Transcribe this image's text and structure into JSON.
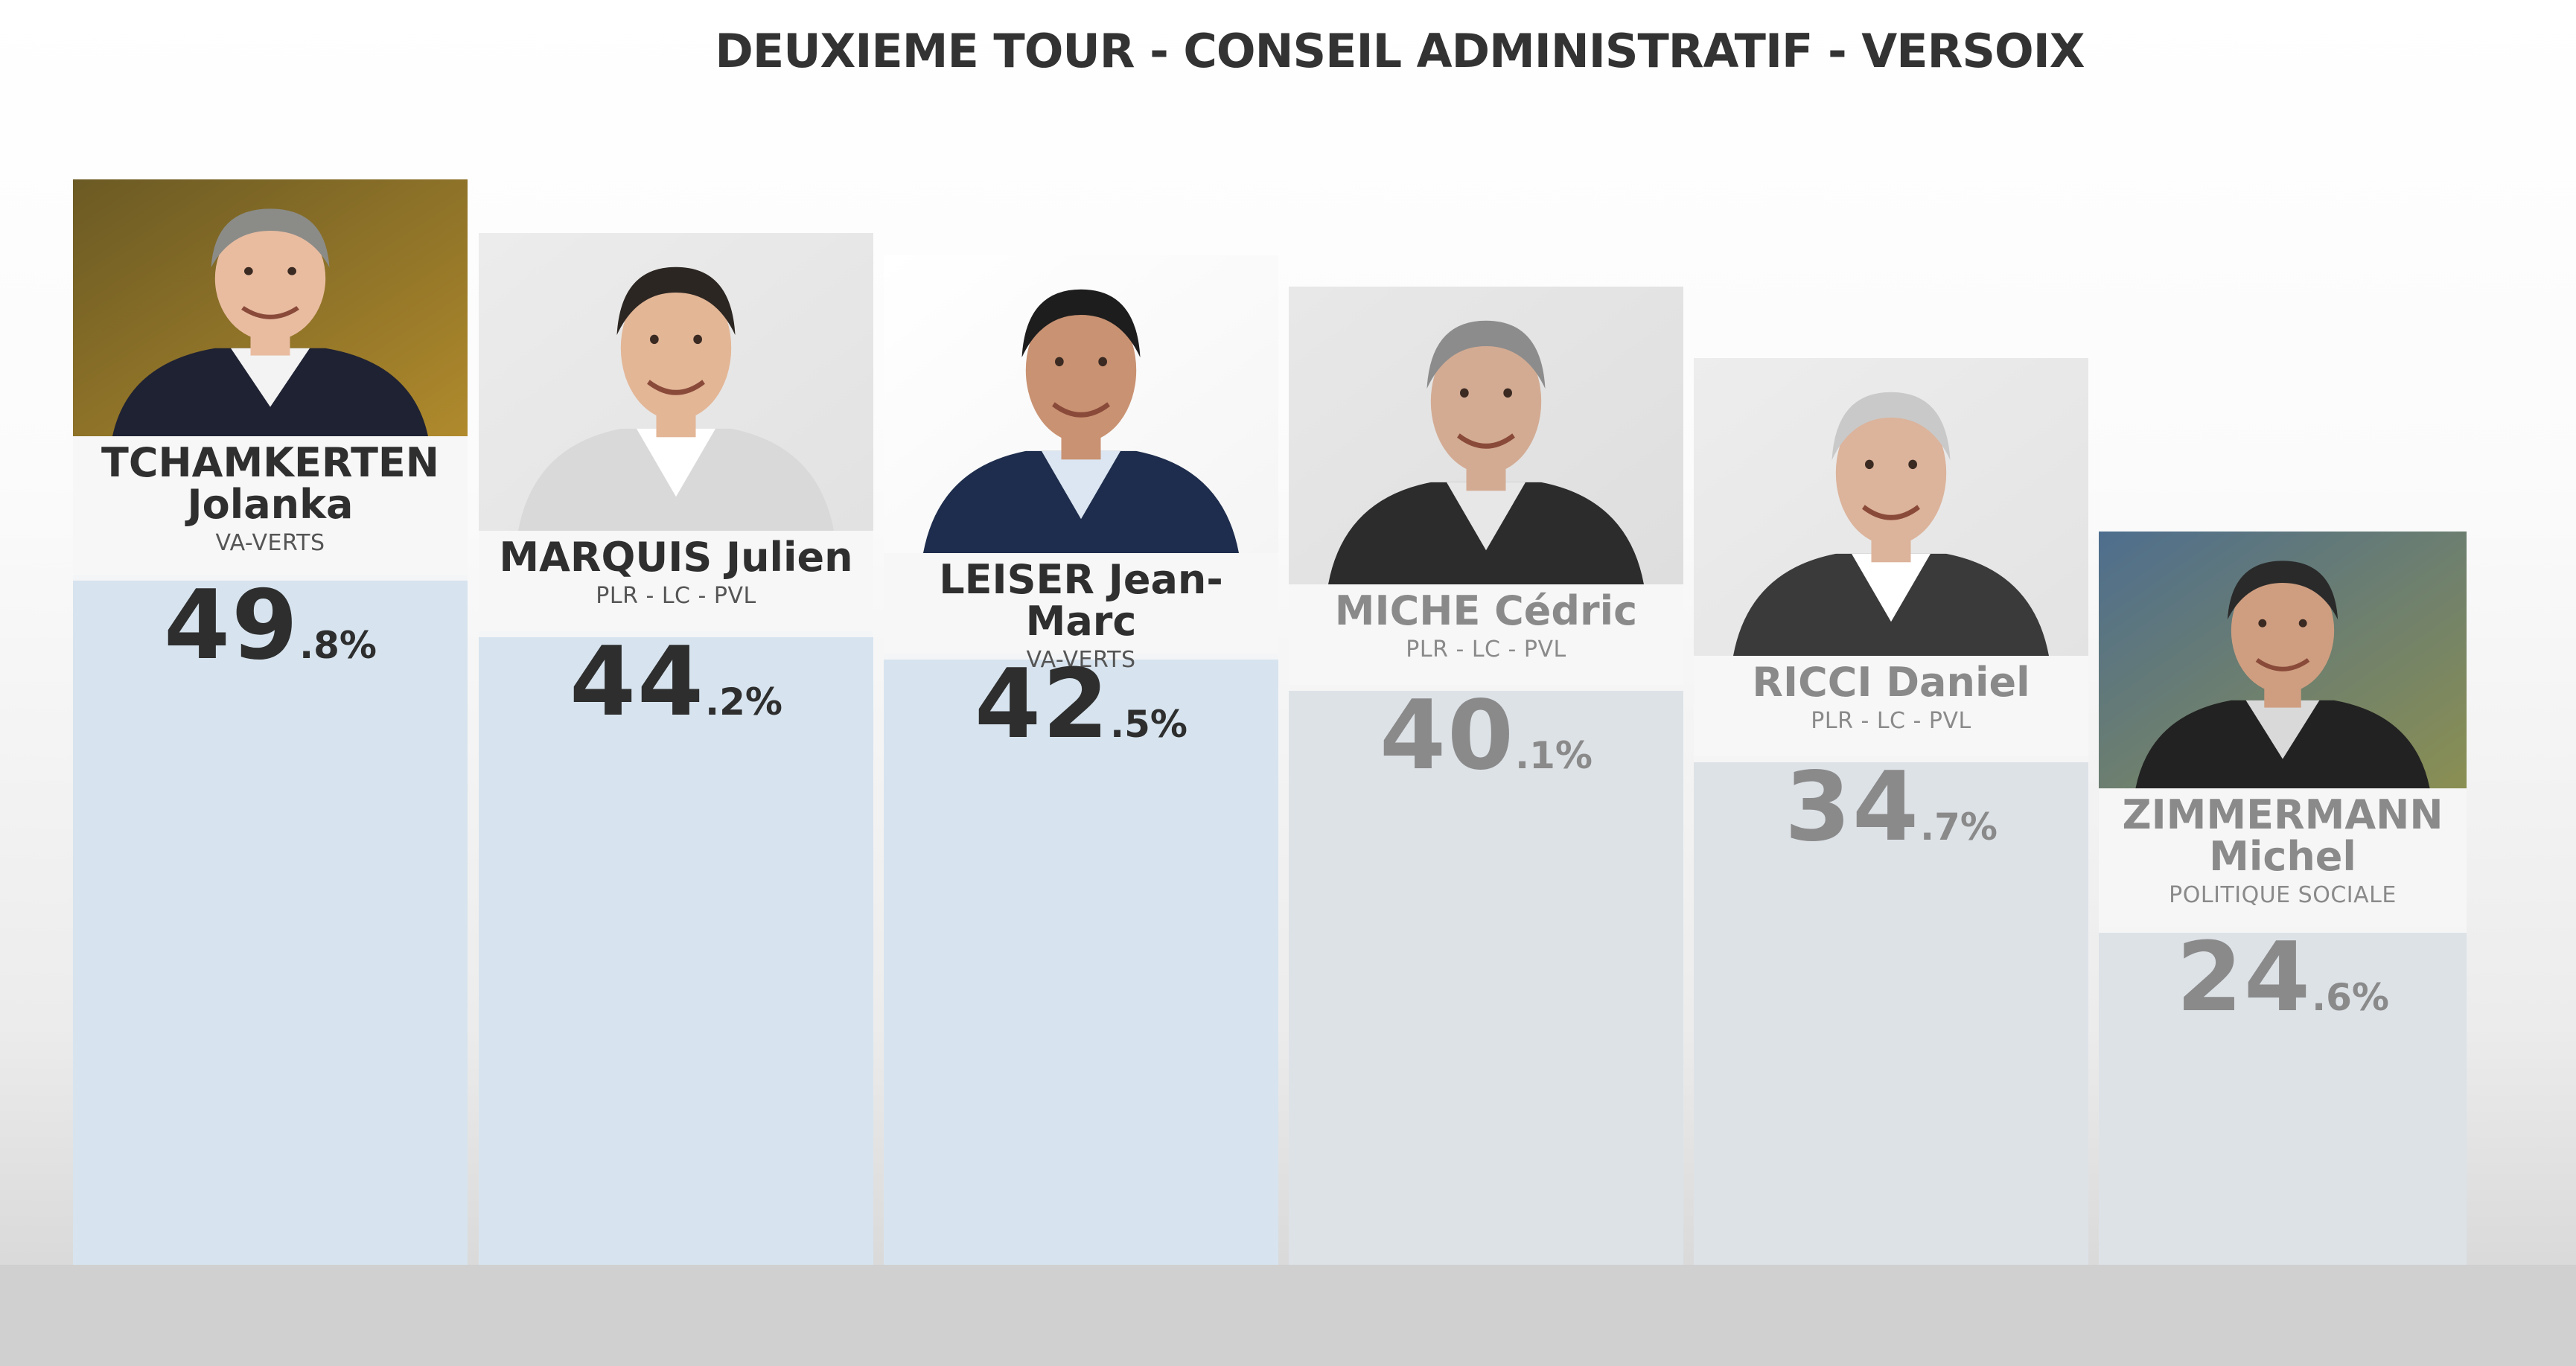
{
  "title": "DEUXIEME TOUR - CONSEIL ADMINISTRATIF - VERSOIX",
  "chart_data": {
    "type": "bar",
    "title": "DEUXIEME TOUR - CONSEIL ADMINISTRATIF - VERSOIX",
    "categories": [
      "TCHAMKERTEN Jolanka",
      "MARQUIS Julien",
      "LEISER Jean-Marc",
      "MICHE Cédric",
      "RICCI Daniel",
      "ZIMMERMANN Michel"
    ],
    "values": [
      49.8,
      44.2,
      42.5,
      40.1,
      34.7,
      24.6
    ],
    "candidates": [
      {
        "name_line1": "TCHAMKERTEN",
        "name_line2": "Jolanka",
        "party": "VA-VERTS",
        "int": "49",
        "dec": ".8%",
        "value": 49.8,
        "elected": true
      },
      {
        "name_line1": "MARQUIS Julien",
        "name_line2": "",
        "party": "PLR - LC - PVL",
        "int": "44",
        "dec": ".2%",
        "value": 44.2,
        "elected": true
      },
      {
        "name_line1": "LEISER Jean-Marc",
        "name_line2": "",
        "party": "VA-VERTS",
        "int": "42",
        "dec": ".5%",
        "value": 42.5,
        "elected": true
      },
      {
        "name_line1": "MICHE Cédric",
        "name_line2": "",
        "party": "PLR - LC - PVL",
        "int": "40",
        "dec": ".1%",
        "value": 40.1,
        "elected": false
      },
      {
        "name_line1": "RICCI Daniel",
        "name_line2": "",
        "party": "PLR - LC - PVL",
        "int": "34",
        "dec": ".7%",
        "value": 34.7,
        "elected": false
      },
      {
        "name_line1": "ZIMMERMANN",
        "name_line2": "Michel",
        "party": "POLITIQUE SOCIALE",
        "int": "24",
        "dec": ".6%",
        "value": 24.6,
        "elected": false
      }
    ],
    "colors": {
      "elected_bar": "#d7e4ef",
      "not_elected_bar": "#dde2e7",
      "text": "#2f2f2f",
      "faded_text": "#8a8a8a"
    },
    "ylim": [
      0,
      60
    ],
    "grid": false,
    "legend": "none"
  }
}
